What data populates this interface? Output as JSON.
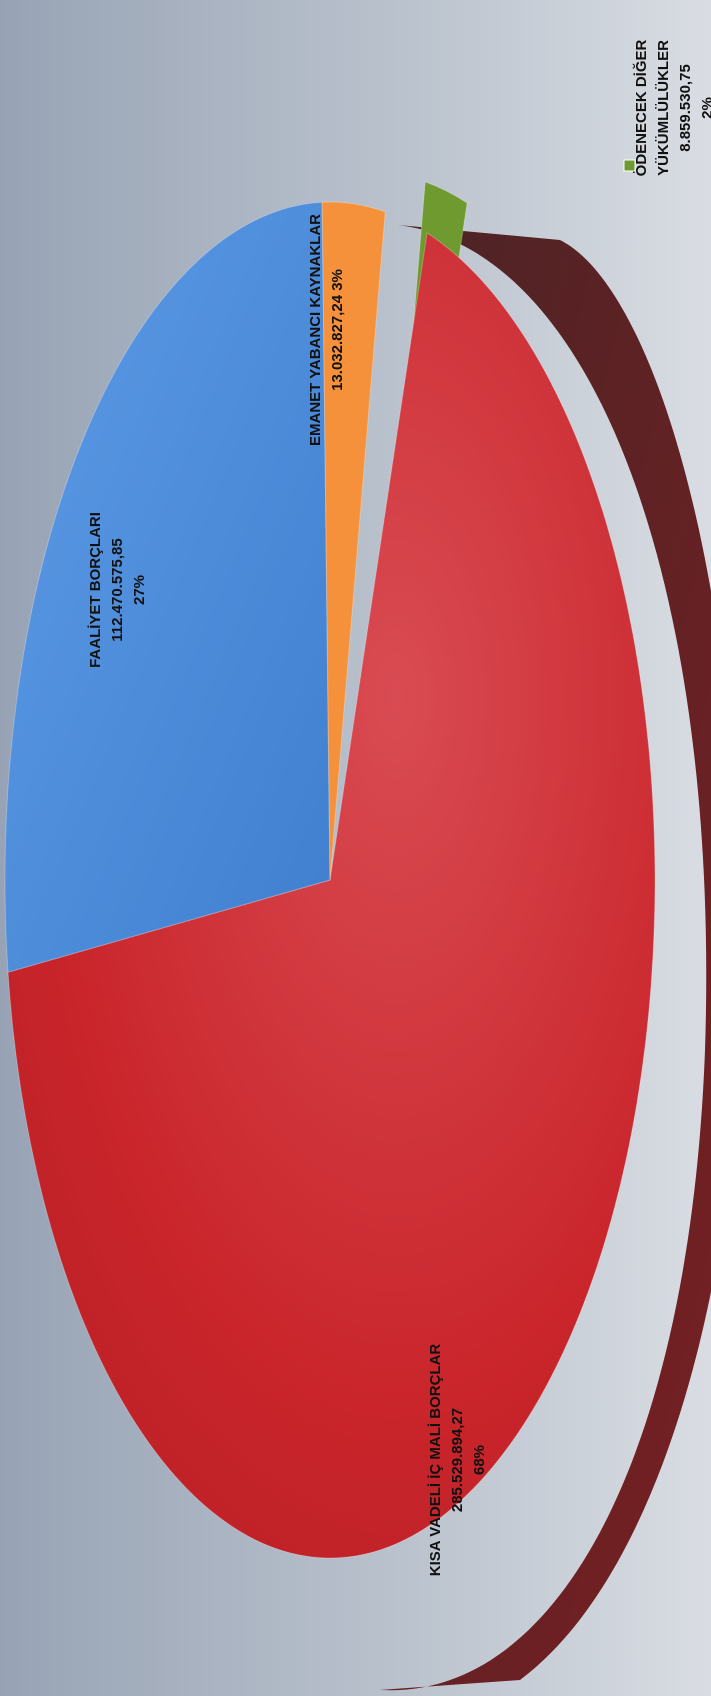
{
  "chart_data": {
    "type": "pie",
    "title": "",
    "orientation": "rotated-90-clockwise",
    "style": "3d",
    "slices": [
      {
        "label": "KISA VADELİ İÇ MALİ BORÇLAR",
        "value_text": "285.529.894,27",
        "percent_text": "68%",
        "value": 285529894.27,
        "color": "#c9252b"
      },
      {
        "label": "FAALİYET BORÇLARI",
        "value_text": "112.470.575,85",
        "percent_text": "27%",
        "value": 112470575.85,
        "color": "#4f8fde"
      },
      {
        "label": "EMANET YABANCI KAYNAKLAR",
        "value_text": "13.032.827,24",
        "percent_text": "3%",
        "value": 13032827.24,
        "color": "#f5913b"
      },
      {
        "label_line1": "ÖDENECEK DİĞER",
        "label_line2": "YÜKÜMLÜLÜKLER",
        "value_text": "8.859.530,75",
        "percent_text": "2%",
        "value": 8859530.75,
        "color": "#6e9a2f"
      }
    ],
    "background": [
      "#9aa6b8",
      "#d4d9e0"
    ]
  }
}
